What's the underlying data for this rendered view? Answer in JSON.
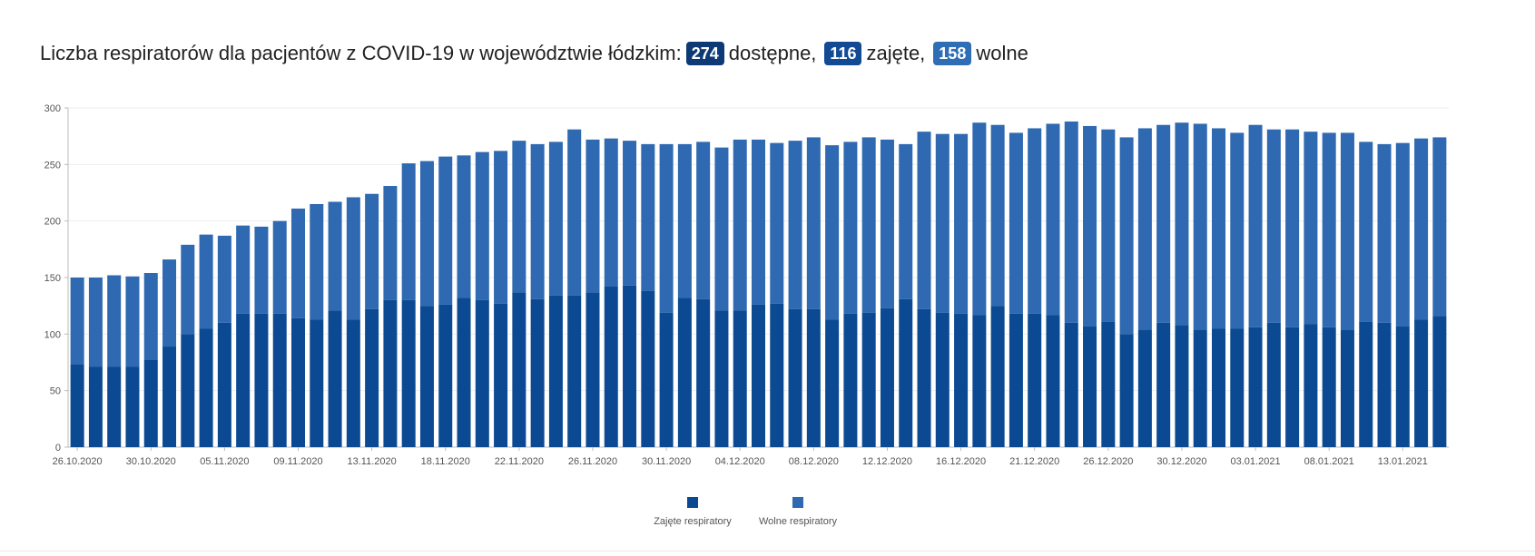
{
  "header": {
    "title_prefix": "Liczba respiratorów dla pacjentów z COVID-19 w województwie łódzkim:",
    "available_value": "274",
    "available_label": "dostępne,",
    "occupied_value": "116",
    "occupied_label": "zajęte,",
    "free_value": "158",
    "free_label": "wolne"
  },
  "colors": {
    "occupied": "#0b4a92",
    "free": "#2e69b1",
    "badge_available": "#0d3a75",
    "badge_occupied": "#124a93",
    "badge_free": "#2f6db5"
  },
  "chart_data": {
    "type": "bar",
    "stacked": true,
    "ylim": [
      0,
      300
    ],
    "yticks": [
      0,
      50,
      100,
      150,
      200,
      250,
      300
    ],
    "x_tick_labels": [
      "26.10.2020",
      "30.10.2020",
      "05.11.2020",
      "09.11.2020",
      "13.11.2020",
      "18.11.2020",
      "22.11.2020",
      "26.11.2020",
      "30.11.2020",
      "04.12.2020",
      "08.12.2020",
      "12.12.2020",
      "16.12.2020",
      "21.12.2020",
      "26.12.2020",
      "30.12.2020",
      "03.01.2021",
      "08.01.2021",
      "13.01.2021"
    ],
    "x_tick_every": 4,
    "legend_position": "bottom-center",
    "series": [
      {
        "name": "Zajęte respiratory",
        "values": [
          73,
          71,
          71,
          71,
          77,
          89,
          100,
          105,
          110,
          118,
          118,
          118,
          114,
          113,
          121,
          113,
          122,
          130,
          130,
          125,
          126,
          132,
          130,
          127,
          137,
          131,
          134,
          134,
          137,
          142,
          143,
          138,
          119,
          132,
          131,
          121,
          121,
          126,
          127,
          122,
          122,
          113,
          118,
          119,
          123,
          131,
          122,
          119,
          118,
          117,
          125,
          118,
          118,
          117,
          110,
          107,
          111,
          100,
          104,
          110,
          108,
          104,
          105,
          105,
          106,
          110,
          106,
          109,
          106,
          104,
          111,
          110,
          107,
          113,
          116
        ]
      },
      {
        "name": "Wolne respiratory",
        "values": [
          77,
          79,
          81,
          80,
          77,
          77,
          79,
          83,
          77,
          78,
          77,
          82,
          97,
          102,
          96,
          108,
          102,
          101,
          121,
          128,
          131,
          126,
          131,
          135,
          134,
          137,
          136,
          147,
          135,
          131,
          128,
          130,
          149,
          136,
          139,
          144,
          151,
          146,
          142,
          149,
          152,
          154,
          152,
          155,
          149,
          137,
          157,
          158,
          159,
          170,
          160,
          160,
          164,
          169,
          178,
          177,
          170,
          174,
          178,
          175,
          179,
          182,
          177,
          173,
          179,
          171,
          175,
          170,
          172,
          174,
          159,
          158,
          162,
          160,
          158
        ]
      }
    ]
  }
}
